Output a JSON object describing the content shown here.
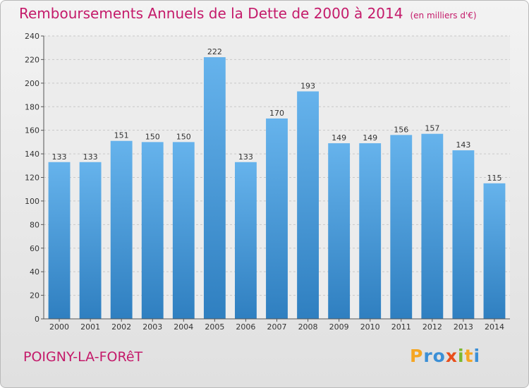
{
  "title": "Remboursements Annuels de la Dette de 2000 à 2014",
  "unit_note": "(en milliers d'€)",
  "town": "POIGNY-LA-FORêT",
  "brand": {
    "letters": [
      {
        "ch": "P",
        "color": "#f5a623"
      },
      {
        "ch": "r",
        "color": "#3b8fd6"
      },
      {
        "ch": "o",
        "color": "#3b8fd6"
      },
      {
        "ch": "x",
        "color": "#e94e1b"
      },
      {
        "ch": "i",
        "color": "#7cb82f"
      },
      {
        "ch": "t",
        "color": "#f5a623"
      },
      {
        "ch": "i",
        "color": "#3b8fd6"
      }
    ]
  },
  "colors": {
    "title": "#c41a6a",
    "bar_top": "#66b3ec",
    "bar_bottom": "#2f7fc0",
    "grid": "#c8c8c8"
  },
  "chart_data": {
    "type": "bar",
    "title": "Remboursements Annuels de la Dette de 2000 à 2014",
    "unit": "(en milliers d'€)",
    "categories": [
      "2000",
      "2001",
      "2002",
      "2003",
      "2004",
      "2005",
      "2006",
      "2007",
      "2008",
      "2009",
      "2010",
      "2011",
      "2012",
      "2013",
      "2014"
    ],
    "values": [
      133,
      133,
      151,
      150,
      150,
      222,
      133,
      170,
      193,
      149,
      149,
      156,
      157,
      143,
      115
    ],
    "ylim": [
      0,
      240
    ],
    "yticks": [
      0,
      20,
      40,
      60,
      80,
      100,
      120,
      140,
      160,
      180,
      200,
      220,
      240
    ],
    "grid": true,
    "data_labels": true
  }
}
